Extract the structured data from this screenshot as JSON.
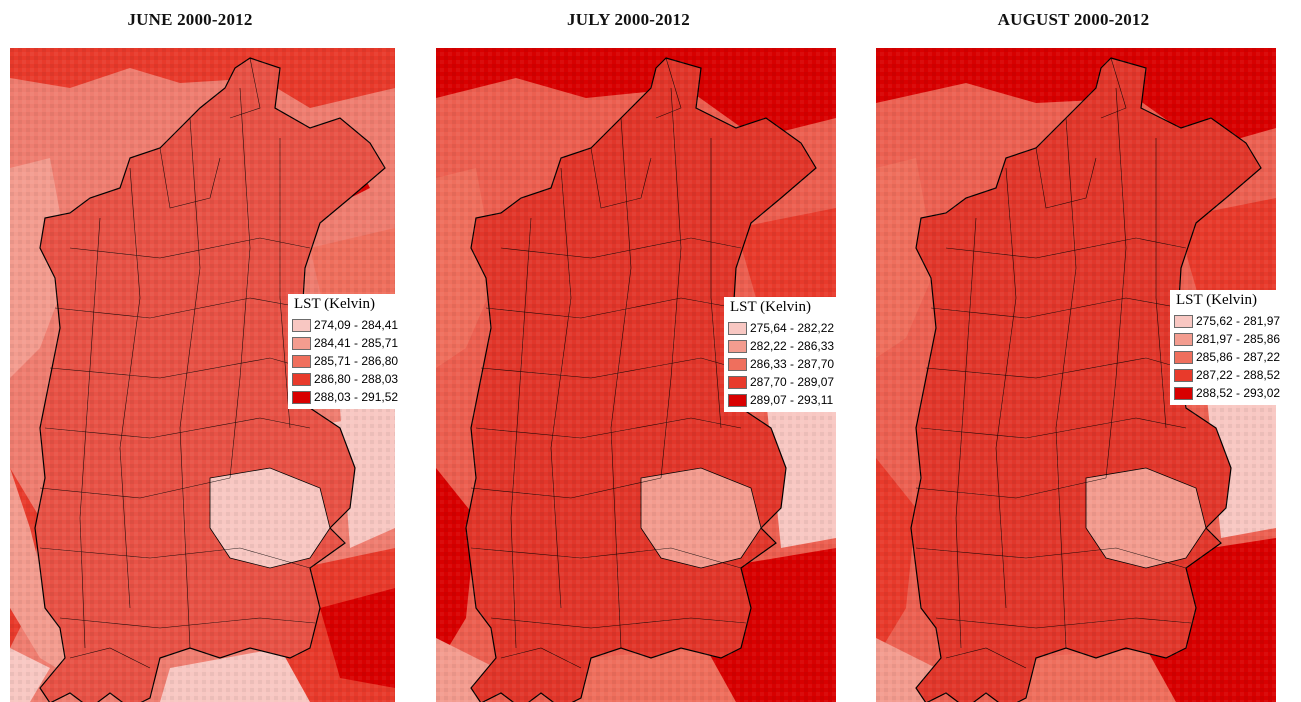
{
  "panels": [
    {
      "title": "JUNE 2000-2012",
      "legend": {
        "title": "LST (Kelvin)",
        "classes": [
          {
            "label": "274,09 - 284,41",
            "color": "#f8c7c2"
          },
          {
            "label": "284,41 - 285,71",
            "color": "#f39c8f"
          },
          {
            "label": "285,71 - 286,80",
            "color": "#ef6f5d"
          },
          {
            "label": "286,80 - 288,03",
            "color": "#e83a2b"
          },
          {
            "label": "288,03 - 291,52",
            "color": "#d80000"
          }
        ]
      }
    },
    {
      "title": "JULY 2000-2012",
      "legend": {
        "title": "LST (Kelvin)",
        "classes": [
          {
            "label": "275,64 - 282,22",
            "color": "#f8c7c2"
          },
          {
            "label": "282,22 - 286,33",
            "color": "#f39c8f"
          },
          {
            "label": "286,33 - 287,70",
            "color": "#ef6f5d"
          },
          {
            "label": "287,70 - 289,07",
            "color": "#e83a2b"
          },
          {
            "label": "289,07 - 293,11",
            "color": "#d80000"
          }
        ]
      }
    },
    {
      "title": "AUGUST 2000-2012",
      "legend": {
        "title": "LST (Kelvin)",
        "classes": [
          {
            "label": "275,62 - 281,97",
            "color": "#f8c7c2"
          },
          {
            "label": "281,97 - 285,86",
            "color": "#f39c8f"
          },
          {
            "label": "285,86 - 287,22",
            "color": "#ef6f5d"
          },
          {
            "label": "287,22 - 288,52",
            "color": "#e83a2b"
          },
          {
            "label": "288,52 - 293,02",
            "color": "#d80000"
          }
        ]
      }
    }
  ]
}
